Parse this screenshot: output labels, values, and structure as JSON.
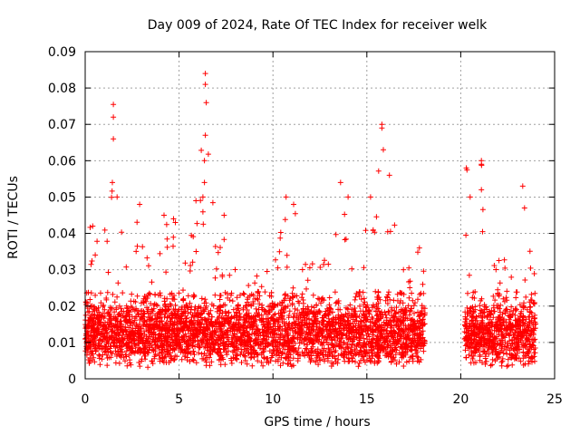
{
  "chart_data": {
    "type": "scatter",
    "title": "Day 009 of 2024, Rate Of TEC Index for receiver welk",
    "xlabel": "GPS time / hours",
    "ylabel": "ROTI / TECUs",
    "xlim": [
      0,
      25
    ],
    "ylim": [
      0,
      0.09
    ],
    "xticks": [
      0,
      5,
      10,
      15,
      20,
      25
    ],
    "xtick_labels": [
      "0",
      "5",
      "10",
      "15",
      "20",
      "25"
    ],
    "yticks": [
      0,
      0.01,
      0.02,
      0.03,
      0.04,
      0.05,
      0.06,
      0.07,
      0.08,
      0.09
    ],
    "ytick_labels": [
      "0",
      "0.01",
      "0.02",
      "0.03",
      "0.04",
      "0.05",
      "0.06",
      "0.07",
      "0.08",
      "0.09"
    ],
    "grid": true,
    "marker": "+",
    "color": "#ff0000",
    "series": [
      {
        "name": "ROTI",
        "segments": [
          {
            "x_start": 0.0,
            "x_end": 18.1
          },
          {
            "x_start": 20.2,
            "x_end": 24.0
          }
        ],
        "baseline_typical": 0.012,
        "spikes": [
          {
            "x": 0.4,
            "y": 0.042
          },
          {
            "x": 1.5,
            "y": 0.0755
          },
          {
            "x": 1.5,
            "y": 0.072
          },
          {
            "x": 1.5,
            "y": 0.066
          },
          {
            "x": 1.45,
            "y": 0.054
          },
          {
            "x": 1.7,
            "y": 0.05
          },
          {
            "x": 2.9,
            "y": 0.048
          },
          {
            "x": 4.2,
            "y": 0.045
          },
          {
            "x": 4.8,
            "y": 0.043
          },
          {
            "x": 5.9,
            "y": 0.049
          },
          {
            "x": 6.4,
            "y": 0.084
          },
          {
            "x": 6.4,
            "y": 0.081
          },
          {
            "x": 6.45,
            "y": 0.076
          },
          {
            "x": 6.4,
            "y": 0.067
          },
          {
            "x": 6.35,
            "y": 0.06
          },
          {
            "x": 6.35,
            "y": 0.054
          },
          {
            "x": 7.4,
            "y": 0.045
          },
          {
            "x": 10.7,
            "y": 0.05
          },
          {
            "x": 11.1,
            "y": 0.048
          },
          {
            "x": 13.6,
            "y": 0.054
          },
          {
            "x": 14.0,
            "y": 0.05
          },
          {
            "x": 15.2,
            "y": 0.05
          },
          {
            "x": 15.8,
            "y": 0.07
          },
          {
            "x": 15.8,
            "y": 0.069
          },
          {
            "x": 16.2,
            "y": 0.056
          },
          {
            "x": 17.8,
            "y": 0.036
          },
          {
            "x": 20.3,
            "y": 0.058
          },
          {
            "x": 20.5,
            "y": 0.05
          },
          {
            "x": 21.1,
            "y": 0.06
          },
          {
            "x": 21.1,
            "y": 0.059
          },
          {
            "x": 21.1,
            "y": 0.052
          },
          {
            "x": 23.3,
            "y": 0.053
          },
          {
            "x": 23.4,
            "y": 0.047
          }
        ]
      }
    ]
  }
}
